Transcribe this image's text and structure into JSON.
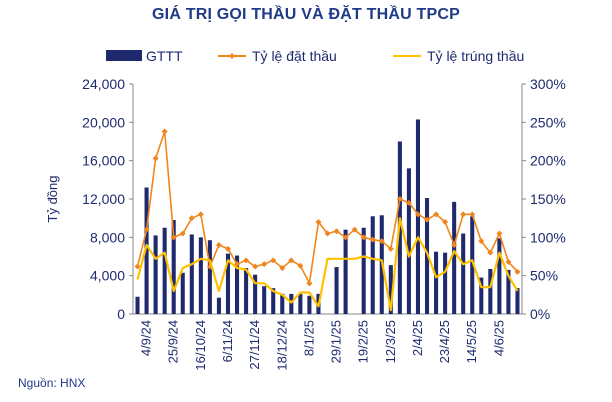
{
  "chart_data": {
    "type": "bar",
    "title": "GIÁ TRỊ GỌI THẦU VÀ ĐẶT THẦU TPCP",
    "ylabel": "Tỷ đồng",
    "ylim": [
      0,
      24000
    ],
    "yticks": [
      "0",
      "4,000",
      "8,000",
      "12,000",
      "16,000",
      "20,000",
      "24,000"
    ],
    "y2lim": [
      0,
      300
    ],
    "y2ticks": [
      "0%",
      "50%",
      "100%",
      "150%",
      "200%",
      "250%",
      "300%"
    ],
    "xtick_labels": [
      "4/9/24",
      "25/9/24",
      "16/10/24",
      "6/11/24",
      "27/11/24",
      "18/12/24",
      "8/1/25",
      "29/1/25",
      "19/2/25",
      "12/3/25",
      "2/4/25",
      "23/4/25",
      "14/5/25",
      "4/6/25"
    ],
    "legend": {
      "placement": "top"
    },
    "source": "Nguồn: HNX",
    "colors": {
      "bars": "#1f2a6e",
      "bid_line": "#f0861e",
      "win_line": "#ffc000",
      "title": "#1f3a86"
    },
    "series": [
      {
        "name": "GTTT",
        "kind": "bar",
        "axis": "left",
        "values": [
          1800,
          13200,
          8200,
          9000,
          9800,
          4300,
          8300,
          8000,
          7700,
          1700,
          6300,
          6100,
          4800,
          4100,
          2900,
          2700,
          2100,
          2100,
          2100,
          1900,
          2100,
          0,
          4900,
          8800,
          0,
          9000,
          10200,
          10300,
          5100,
          18000,
          15200,
          20300,
          12100,
          6500,
          6400,
          11700,
          8400,
          10200,
          3800,
          4700,
          7900,
          4600,
          2700
        ]
      },
      {
        "name": "Tỷ lệ đặt thầu",
        "kind": "line",
        "axis": "right",
        "values": [
          62,
          110,
          203,
          238,
          100,
          105,
          125,
          130,
          62,
          90,
          85,
          65,
          70,
          62,
          65,
          70,
          60,
          70,
          63,
          40,
          120,
          105,
          108,
          100,
          110,
          100,
          97,
          95,
          85,
          150,
          145,
          130,
          123,
          130,
          120,
          90,
          130,
          130,
          95,
          80,
          105,
          68,
          55
        ]
      },
      {
        "name": "Tỷ lệ trúng thầu",
        "kind": "line",
        "axis": "right",
        "values": [
          45,
          90,
          72,
          80,
          30,
          60,
          65,
          72,
          70,
          30,
          70,
          60,
          58,
          40,
          40,
          30,
          25,
          15,
          28,
          28,
          10,
          72,
          72,
          72,
          72,
          75,
          72,
          70,
          5,
          125,
          75,
          100,
          80,
          48,
          55,
          82,
          65,
          70,
          35,
          35,
          80,
          50,
          30
        ]
      }
    ]
  }
}
